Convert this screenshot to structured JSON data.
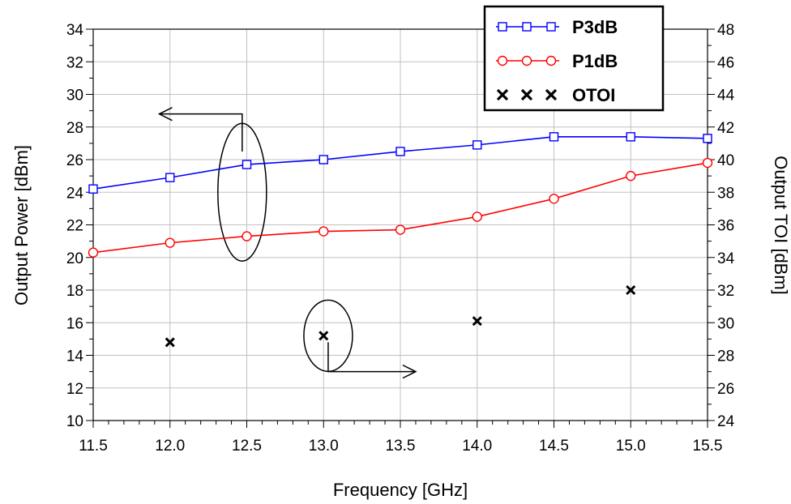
{
  "chart_data": {
    "type": "line",
    "xlabel": "Frequency [GHz]",
    "ylabel": "Output Power [dBm]",
    "y2label": "Output TOI [dBm]",
    "xlim": [
      11.5,
      15.5
    ],
    "ylim": [
      10,
      34
    ],
    "y2lim": [
      24,
      48
    ],
    "x_ticks": [
      "11.5",
      "12.0",
      "12.5",
      "13.0",
      "13.5",
      "14.0",
      "14.5",
      "15.0",
      "15.5"
    ],
    "y_ticks": [
      "10",
      "12",
      "14",
      "16",
      "18",
      "20",
      "22",
      "24",
      "26",
      "28",
      "30",
      "32",
      "34"
    ],
    "y2_ticks": [
      "24",
      "26",
      "28",
      "30",
      "32",
      "34",
      "36",
      "38",
      "40",
      "42",
      "44",
      "46",
      "48"
    ],
    "grid": true,
    "legend_position": "top-right",
    "series": [
      {
        "name": "P3dB",
        "axis": "left",
        "color": "#0000ff",
        "marker": "square",
        "line": true,
        "x": [
          11.5,
          12.0,
          12.5,
          13.0,
          13.5,
          14.0,
          14.5,
          15.0,
          15.5
        ],
        "y": [
          24.2,
          24.9,
          25.7,
          26.0,
          26.5,
          26.9,
          27.4,
          27.4,
          27.3
        ]
      },
      {
        "name": "P1dB",
        "axis": "left",
        "color": "#ff0000",
        "marker": "circle",
        "line": true,
        "x": [
          11.5,
          12.0,
          12.5,
          13.0,
          13.5,
          14.0,
          14.5,
          15.0,
          15.5
        ],
        "y": [
          20.3,
          20.9,
          21.3,
          21.6,
          21.7,
          22.5,
          23.6,
          25.0,
          25.8
        ]
      },
      {
        "name": "OTOI",
        "axis": "right",
        "color": "#000000",
        "marker": "x",
        "line": false,
        "x": [
          12.0,
          13.0,
          14.0,
          15.0
        ],
        "y": [
          28.8,
          29.2,
          30.1,
          32.0
        ]
      }
    ]
  }
}
